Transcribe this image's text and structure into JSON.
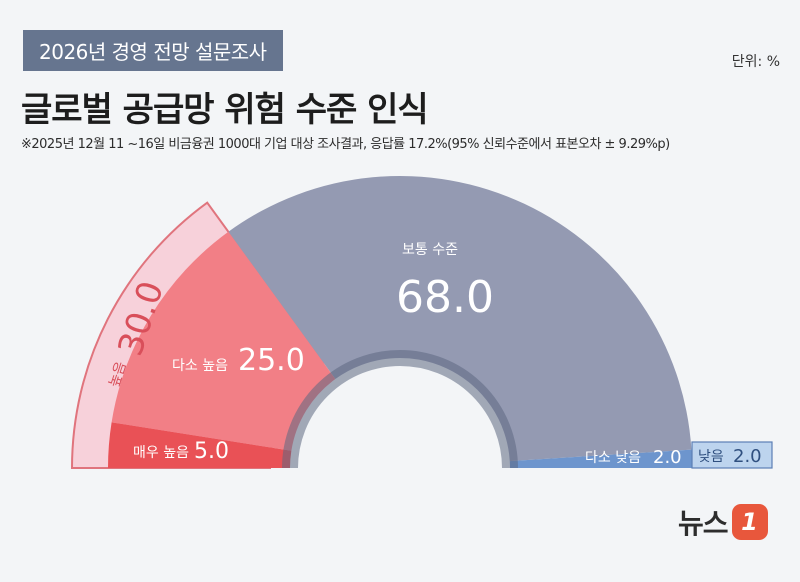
{
  "header": {
    "tag": "2026년 경영 전망 설문조사",
    "unit": "단위: %",
    "title": "글로벌 공급망 위험 수준 인식",
    "note": "※2025년 12월 11 ~16일 비금융권 1000대 기업 대상 조사결과, 응답률 17.2%(95% 신뢰수준에서 표본오차 ± 9.29%p)"
  },
  "chart_data": {
    "type": "pie",
    "shape": "semicircle",
    "categories": [
      "높음",
      "매우 높음",
      "다소 높음",
      "보통 수준",
      "다소 낮음",
      "낮음"
    ],
    "values": [
      30.0,
      5.0,
      25.0,
      68.0,
      2.0,
      2.0
    ],
    "series": [
      {
        "label": "높음",
        "value": "30.0",
        "color": "#f7d1da",
        "stroke": "#e0747d"
      },
      {
        "label": "매우 높음",
        "value": "5.0",
        "color": "#e95156"
      },
      {
        "label": "다소 높음",
        "value": "25.0",
        "color": "#f27f86"
      },
      {
        "label": "보통 수준",
        "value": "68.0",
        "color": "#949ab2"
      },
      {
        "label": "다소 낮음",
        "value": "2.0",
        "color": "#6d95cd"
      },
      {
        "label": "낮음",
        "value": "2.0",
        "color": "#bdd4ee",
        "stroke": "#5c7fb5"
      }
    ]
  },
  "logo": {
    "text": "뉴스",
    "badge": "1"
  }
}
